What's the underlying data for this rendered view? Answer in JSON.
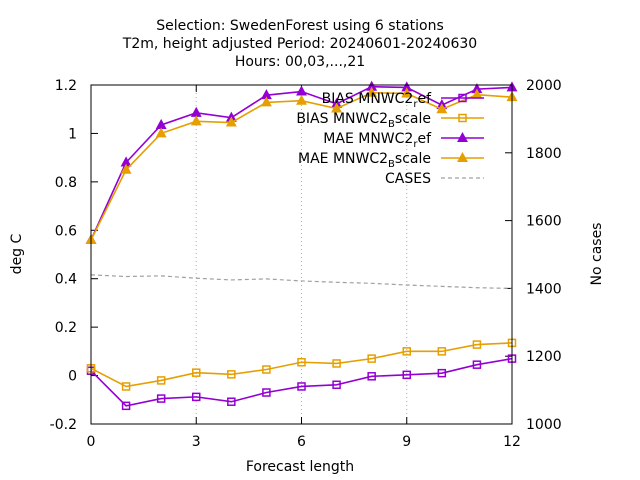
{
  "chart_data": {
    "type": "line",
    "title_lines": [
      "Selection: SwedenForest using     6 stations",
      "T2m, height adjusted   Period: 20240601-20240630",
      "Hours: 00,03,...,21"
    ],
    "xlabel": "Forecast length",
    "ylabel": "deg C",
    "y2label": "No cases",
    "x": [
      0,
      1,
      2,
      3,
      4,
      5,
      6,
      7,
      8,
      9,
      10,
      11,
      12
    ],
    "xlim": [
      0,
      12
    ],
    "xticks": [
      0,
      3,
      6,
      9,
      12
    ],
    "xtick_labels": [
      "0",
      "3",
      "6",
      "9",
      "12"
    ],
    "ylim": [
      -0.2,
      1.2
    ],
    "yticks": [
      -0.2,
      0,
      0.2,
      0.4,
      0.6,
      0.8,
      1,
      1.2
    ],
    "ytick_labels": [
      "-0.2",
      "0",
      "0.2",
      "0.4",
      "0.6",
      "0.8",
      "1",
      "1.2"
    ],
    "y2lim": [
      1000,
      2000
    ],
    "y2ticks": [
      1000,
      1200,
      1400,
      1600,
      1800,
      2000
    ],
    "y2tick_labels": [
      "1000",
      "1200",
      "1400",
      "1600",
      "1800",
      "2000"
    ],
    "legend_position": "top-right",
    "series": [
      {
        "name": "BIAS MNWC2_ref",
        "label_main": "BIAS MNWC2",
        "label_sub": "r",
        "label_tail": "ef",
        "color": "#9400d3",
        "marker": "square",
        "axis": "y",
        "values": [
          0.02,
          -0.125,
          -0.095,
          -0.088,
          -0.108,
          -0.07,
          -0.045,
          -0.038,
          -0.003,
          0.003,
          0.01,
          0.045,
          0.07
        ]
      },
      {
        "name": "BIAS MNWC2_Bscale",
        "label_main": "BIAS MNWC2",
        "label_sub": "B",
        "label_tail": "scale",
        "color": "#e69f00",
        "marker": "square",
        "axis": "y",
        "values": [
          0.03,
          -0.045,
          -0.02,
          0.012,
          0.005,
          0.025,
          0.055,
          0.05,
          0.07,
          0.1,
          0.1,
          0.128,
          0.135
        ]
      },
      {
        "name": "MAE MNWC2_ref",
        "label_main": "MAE MNWC2",
        "label_sub": "r",
        "label_tail": "ef",
        "color": "#9400d3",
        "marker": "triangle",
        "axis": "y",
        "values": [
          0.56,
          0.88,
          1.035,
          1.085,
          1.065,
          1.158,
          1.173,
          1.122,
          1.193,
          1.19,
          1.117,
          1.183,
          1.19
        ]
      },
      {
        "name": "MAE MNWC2_Bscale",
        "label_main": "MAE MNWC2",
        "label_sub": "B",
        "label_tail": "scale",
        "color": "#e69f00",
        "marker": "triangle",
        "axis": "y",
        "values": [
          0.56,
          0.85,
          1.0,
          1.05,
          1.045,
          1.128,
          1.135,
          1.103,
          1.168,
          1.165,
          1.1,
          1.16,
          1.15
        ]
      },
      {
        "name": "CASES",
        "label_main": "CASES",
        "label_sub": "",
        "label_tail": "",
        "color": "#a0a0a0",
        "marker": "none",
        "dash": true,
        "axis": "y2",
        "values": [
          1440,
          1435,
          1437,
          1430,
          1425,
          1428,
          1422,
          1418,
          1415,
          1410,
          1406,
          1402,
          1400
        ]
      }
    ]
  }
}
